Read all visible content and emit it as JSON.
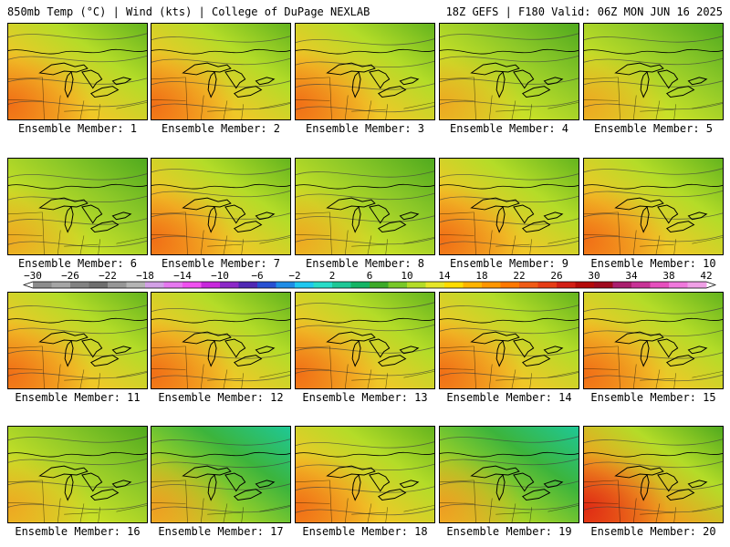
{
  "header": {
    "left": "850mb Temp (°C) | Wind (kts) | College of DuPage NEXLAB",
    "right": "18Z GEFS | F180 Valid: 06Z MON JUN 16 2025"
  },
  "panels": [
    {
      "label": "Ensemble Member: 1",
      "tone": "warm"
    },
    {
      "label": "Ensemble Member: 2",
      "tone": "warm"
    },
    {
      "label": "Ensemble Member: 3",
      "tone": "warm"
    },
    {
      "label": "Ensemble Member: 4",
      "tone": "mild"
    },
    {
      "label": "Ensemble Member: 5",
      "tone": "mild"
    },
    {
      "label": "Ensemble Member: 6",
      "tone": "mild"
    },
    {
      "label": "Ensemble Member: 7",
      "tone": "warm"
    },
    {
      "label": "Ensemble Member: 8",
      "tone": "mild"
    },
    {
      "label": "Ensemble Member: 9",
      "tone": "warm"
    },
    {
      "label": "Ensemble Member: 10",
      "tone": "warm"
    },
    {
      "label": "Ensemble Member: 11",
      "tone": "warm"
    },
    {
      "label": "Ensemble Member: 12",
      "tone": "warm"
    },
    {
      "label": "Ensemble Member: 13",
      "tone": "warm"
    },
    {
      "label": "Ensemble Member: 14",
      "tone": "warm"
    },
    {
      "label": "Ensemble Member: 15",
      "tone": "warm"
    },
    {
      "label": "Ensemble Member: 16",
      "tone": "mild"
    },
    {
      "label": "Ensemble Member: 17",
      "tone": "cool"
    },
    {
      "label": "Ensemble Member: 18",
      "tone": "warm"
    },
    {
      "label": "Ensemble Member: 19",
      "tone": "cool"
    },
    {
      "label": "Ensemble Member: 20",
      "tone": "hot"
    }
  ],
  "colorbar": {
    "ticks": [
      "−30",
      "−26",
      "−22",
      "−18",
      "−14",
      "−10",
      "−6",
      "−2",
      "2",
      "6",
      "10",
      "14",
      "18",
      "22",
      "26",
      "30",
      "34",
      "38",
      "42"
    ],
    "colors": [
      "#8c8c8c",
      "#a5a5a5",
      "#828282",
      "#6e6e6e",
      "#969696",
      "#b4b4b4",
      "#d2a0e6",
      "#e678f0",
      "#f050f0",
      "#c828dc",
      "#8c28c8",
      "#5028b4",
      "#2850d2",
      "#1e8ce6",
      "#1ec8f0",
      "#28dcc8",
      "#1ec896",
      "#14b464",
      "#3caa28",
      "#78c828",
      "#b4dc28",
      "#e6e628",
      "#ffdc00",
      "#ffb400",
      "#ff9600",
      "#ff7800",
      "#f05a14",
      "#e63c14",
      "#d21e14",
      "#b40a0a",
      "#a00a1e",
      "#aa1e6e",
      "#c83296",
      "#e650be",
      "#f078dc",
      "#f0a0e6"
    ]
  }
}
